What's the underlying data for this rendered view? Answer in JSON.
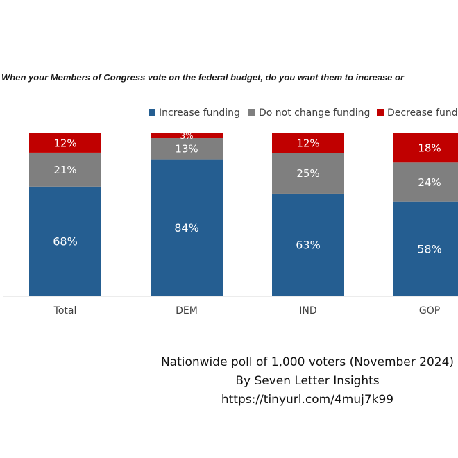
{
  "chart_data": {
    "type": "bar",
    "stacked": true,
    "title": "When your Members of Congress vote on the federal budget, do you want them to increase or",
    "categories": [
      "Total",
      "DEM",
      "IND",
      "GOP"
    ],
    "series": [
      {
        "name": "Increase funding",
        "color": "#255e91",
        "values": [
          68,
          84,
          63,
          58
        ],
        "labels": [
          "68%",
          "84%",
          "63%",
          "58%"
        ]
      },
      {
        "name": "Do not change funding",
        "color": "#7f7f7f",
        "values": [
          21,
          13,
          25,
          24
        ],
        "labels": [
          "21%",
          "13%",
          "25%",
          "24%"
        ]
      },
      {
        "name": "Decrease funding",
        "color": "#c00000",
        "values": [
          12,
          3,
          12,
          18
        ],
        "labels": [
          "12%",
          "3%",
          "12%",
          "18%"
        ]
      }
    ],
    "legend_position": "top-right",
    "grid": false
  },
  "source": {
    "line1": "Nationwide poll of 1,000 voters (November 2024)",
    "line2": "By Seven Letter Insights",
    "line3": "https://tinyurl.com/4muj7k99"
  }
}
